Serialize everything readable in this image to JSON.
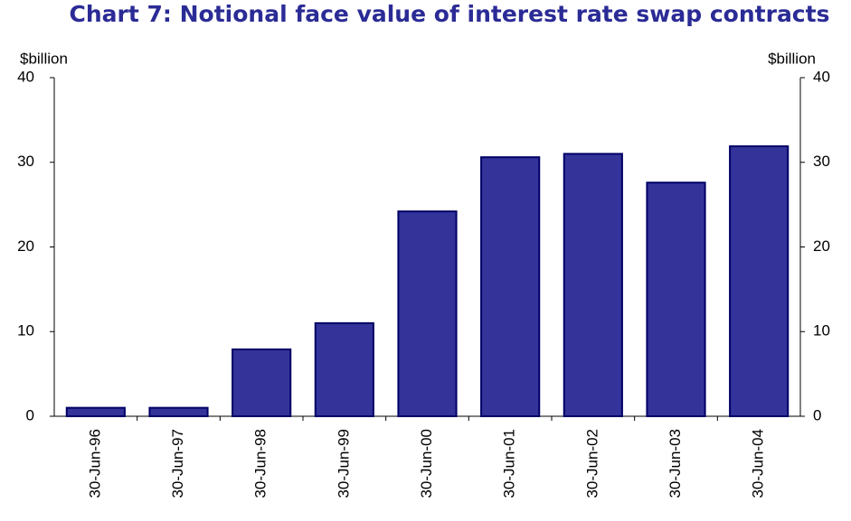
{
  "chart_data": {
    "type": "bar",
    "title": "Chart 7:  Notional face value of interest rate swap contracts",
    "y_label": "$billion",
    "y2_label": "$billion",
    "categories": [
      "30-Jun-96",
      "30-Jun-97",
      "30-Jun-98",
      "30-Jun-99",
      "30-Jun-00",
      "30-Jun-01",
      "30-Jun-02",
      "30-Jun-03",
      "30-Jun-04"
    ],
    "values": [
      1,
      1,
      7.9,
      11,
      24.2,
      30.6,
      31,
      27.6,
      31.9
    ],
    "color": "#333399",
    "ylim": [
      0,
      40
    ],
    "yticks": [
      0,
      10,
      20,
      30,
      40
    ],
    "y2lim": [
      0,
      40
    ],
    "y2ticks": [
      0,
      10,
      20,
      30,
      40
    ],
    "grid": false
  }
}
